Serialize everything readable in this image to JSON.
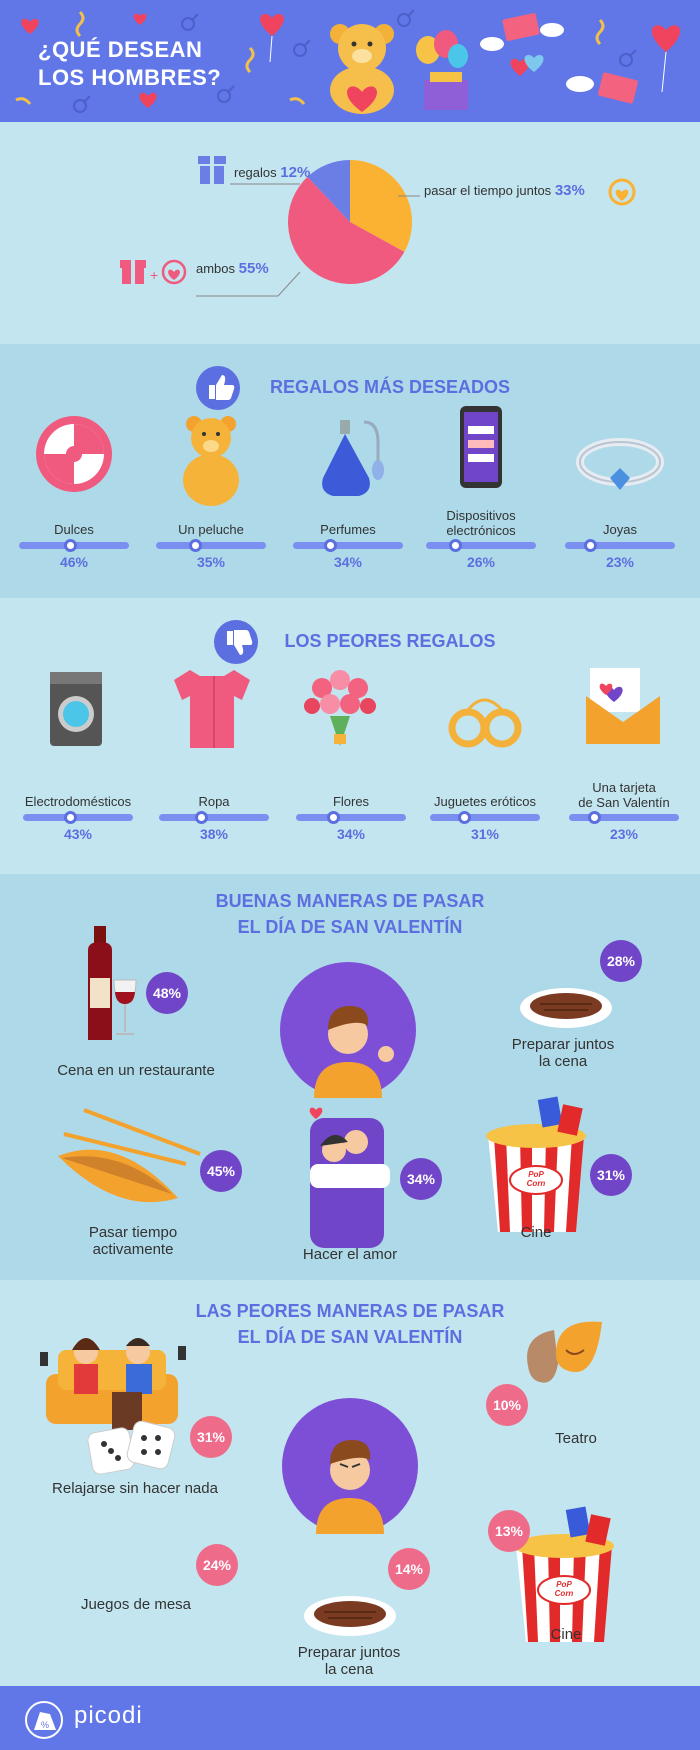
{
  "header": {
    "title_line1": "¿QUÉ DESEAN",
    "title_line2": "LOS HOMBRES?"
  },
  "chart_data": [
    {
      "type": "pie",
      "slices": [
        {
          "label": "regalos",
          "value": 12,
          "display": "12%",
          "color": "#6a7ee6"
        },
        {
          "label": "pasar el tiempo juntos",
          "value": 33,
          "display": "33%",
          "color": "#fbb132"
        },
        {
          "label": "ambos",
          "value": 55,
          "display": "55%",
          "color": "#f05a7e"
        }
      ]
    },
    {
      "type": "bar",
      "title": "REGALOS MÁS DESEADOS",
      "categories": [
        "Dulces",
        "Un peluche",
        "Perfumes",
        "Dispositivos electrónicos",
        "Joyas"
      ],
      "values": [
        46,
        35,
        34,
        26,
        23
      ],
      "labels": [
        "46%",
        "35%",
        "34%",
        "26%",
        "23%"
      ],
      "icons": [
        "candy-icon",
        "teddy-bear-icon",
        "perfume-icon",
        "smartphone-icon",
        "ring-icon"
      ]
    },
    {
      "type": "bar",
      "title": "LOS PEORES REGALOS",
      "categories": [
        "Electrodomésticos",
        "Ropa",
        "Flores",
        "Juguetes eróticos",
        "Una tarjeta de San Valentín"
      ],
      "values": [
        43,
        38,
        34,
        31,
        23
      ],
      "labels": [
        "43%",
        "38%",
        "34%",
        "31%",
        "23%"
      ],
      "icons": [
        "washing-machine-icon",
        "shirt-icon",
        "flowers-icon",
        "handcuffs-icon",
        "envelope-heart-icon"
      ]
    },
    {
      "type": "bar",
      "title": "BUENAS MANERAS DE PASAR EL DÍA DE SAN VALENTÍN",
      "categories": [
        "Cena en un restaurante",
        "Preparar juntos la cena",
        "Pasar tiempo activamente",
        "Hacer el amor",
        "Cine"
      ],
      "values": [
        48,
        28,
        45,
        34,
        31
      ],
      "labels": [
        "48%",
        "28%",
        "45%",
        "34%",
        "31%"
      ]
    },
    {
      "type": "bar",
      "title": "LAS PEORES MANERAS DE PASAR EL DÍA DE SAN VALENTÍN",
      "categories": [
        "Relajarse sin hacer nada",
        "Teatro",
        "Juegos de mesa",
        "Preparar juntos la cena",
        "Cine"
      ],
      "values": [
        31,
        10,
        24,
        14,
        13
      ],
      "labels": [
        "31%",
        "10%",
        "24%",
        "14%",
        "13%"
      ]
    }
  ],
  "pie": {
    "regalos_label": "regalos",
    "regalos_pct": "12%",
    "tiempo_label": "pasar el tiempo juntos",
    "tiempo_pct": "33%",
    "ambos_label": "ambos",
    "ambos_pct": "55%"
  },
  "most": {
    "title": "REGALOS MÁS DESEADOS",
    "items": [
      {
        "label": "Dulces",
        "pct": "46%"
      },
      {
        "label": "Un peluche",
        "pct": "35%"
      },
      {
        "label": "Perfumes",
        "pct": "34%"
      },
      {
        "label_l1": "Dispositivos",
        "label_l2": "electrónicos",
        "pct": "26%"
      },
      {
        "label": "Joyas",
        "pct": "23%"
      }
    ]
  },
  "worst": {
    "title": "LOS PEORES REGALOS",
    "items": [
      {
        "label": "Electrodomésticos",
        "pct": "43%"
      },
      {
        "label": "Ropa",
        "pct": "38%"
      },
      {
        "label": "Flores",
        "pct": "34%"
      },
      {
        "label": "Juguetes eróticos",
        "pct": "31%"
      },
      {
        "label_l1": "Una tarjeta",
        "label_l2": "de San Valentín",
        "pct": "23%"
      }
    ]
  },
  "good": {
    "title_l1": "BUENAS MANERAS DE PASAR",
    "title_l2": "EL DÍA DE SAN VALENTÍN",
    "cena_rest": {
      "label": "Cena en un restaurante",
      "pct": "48%"
    },
    "cena_juntos": {
      "label_l1": "Preparar juntos",
      "label_l2": "la cena",
      "pct": "28%"
    },
    "activo": {
      "label_l1": "Pasar tiempo",
      "label_l2": "activamente",
      "pct": "45%"
    },
    "amor": {
      "label": "Hacer el amor",
      "pct": "34%"
    },
    "cine": {
      "label": "Cine",
      "pct": "31%",
      "box_text1": "PoP",
      "box_text2": "Corn"
    }
  },
  "bad": {
    "title_l1": "LAS PEORES MANERAS DE PASAR",
    "title_l2": "EL DÍA DE SAN VALENTÍN",
    "relajarse": {
      "label": "Relajarse sin hacer nada",
      "pct": "31%"
    },
    "teatro": {
      "label": "Teatro",
      "pct": "10%"
    },
    "juegos": {
      "label": "Juegos de mesa",
      "pct": "24%"
    },
    "cena": {
      "label_l1": "Preparar juntos",
      "label_l2": "la cena",
      "pct": "14%"
    },
    "cine": {
      "label": "Cine",
      "pct": "13%",
      "box_text1": "PoP",
      "box_text2": "Corn"
    }
  },
  "footer": {
    "brand": "picodi"
  },
  "colors": {
    "accent": "#5c6fe0",
    "purple": "#7145c8",
    "pink": "#ef6b8a",
    "header": "#6177e8"
  }
}
